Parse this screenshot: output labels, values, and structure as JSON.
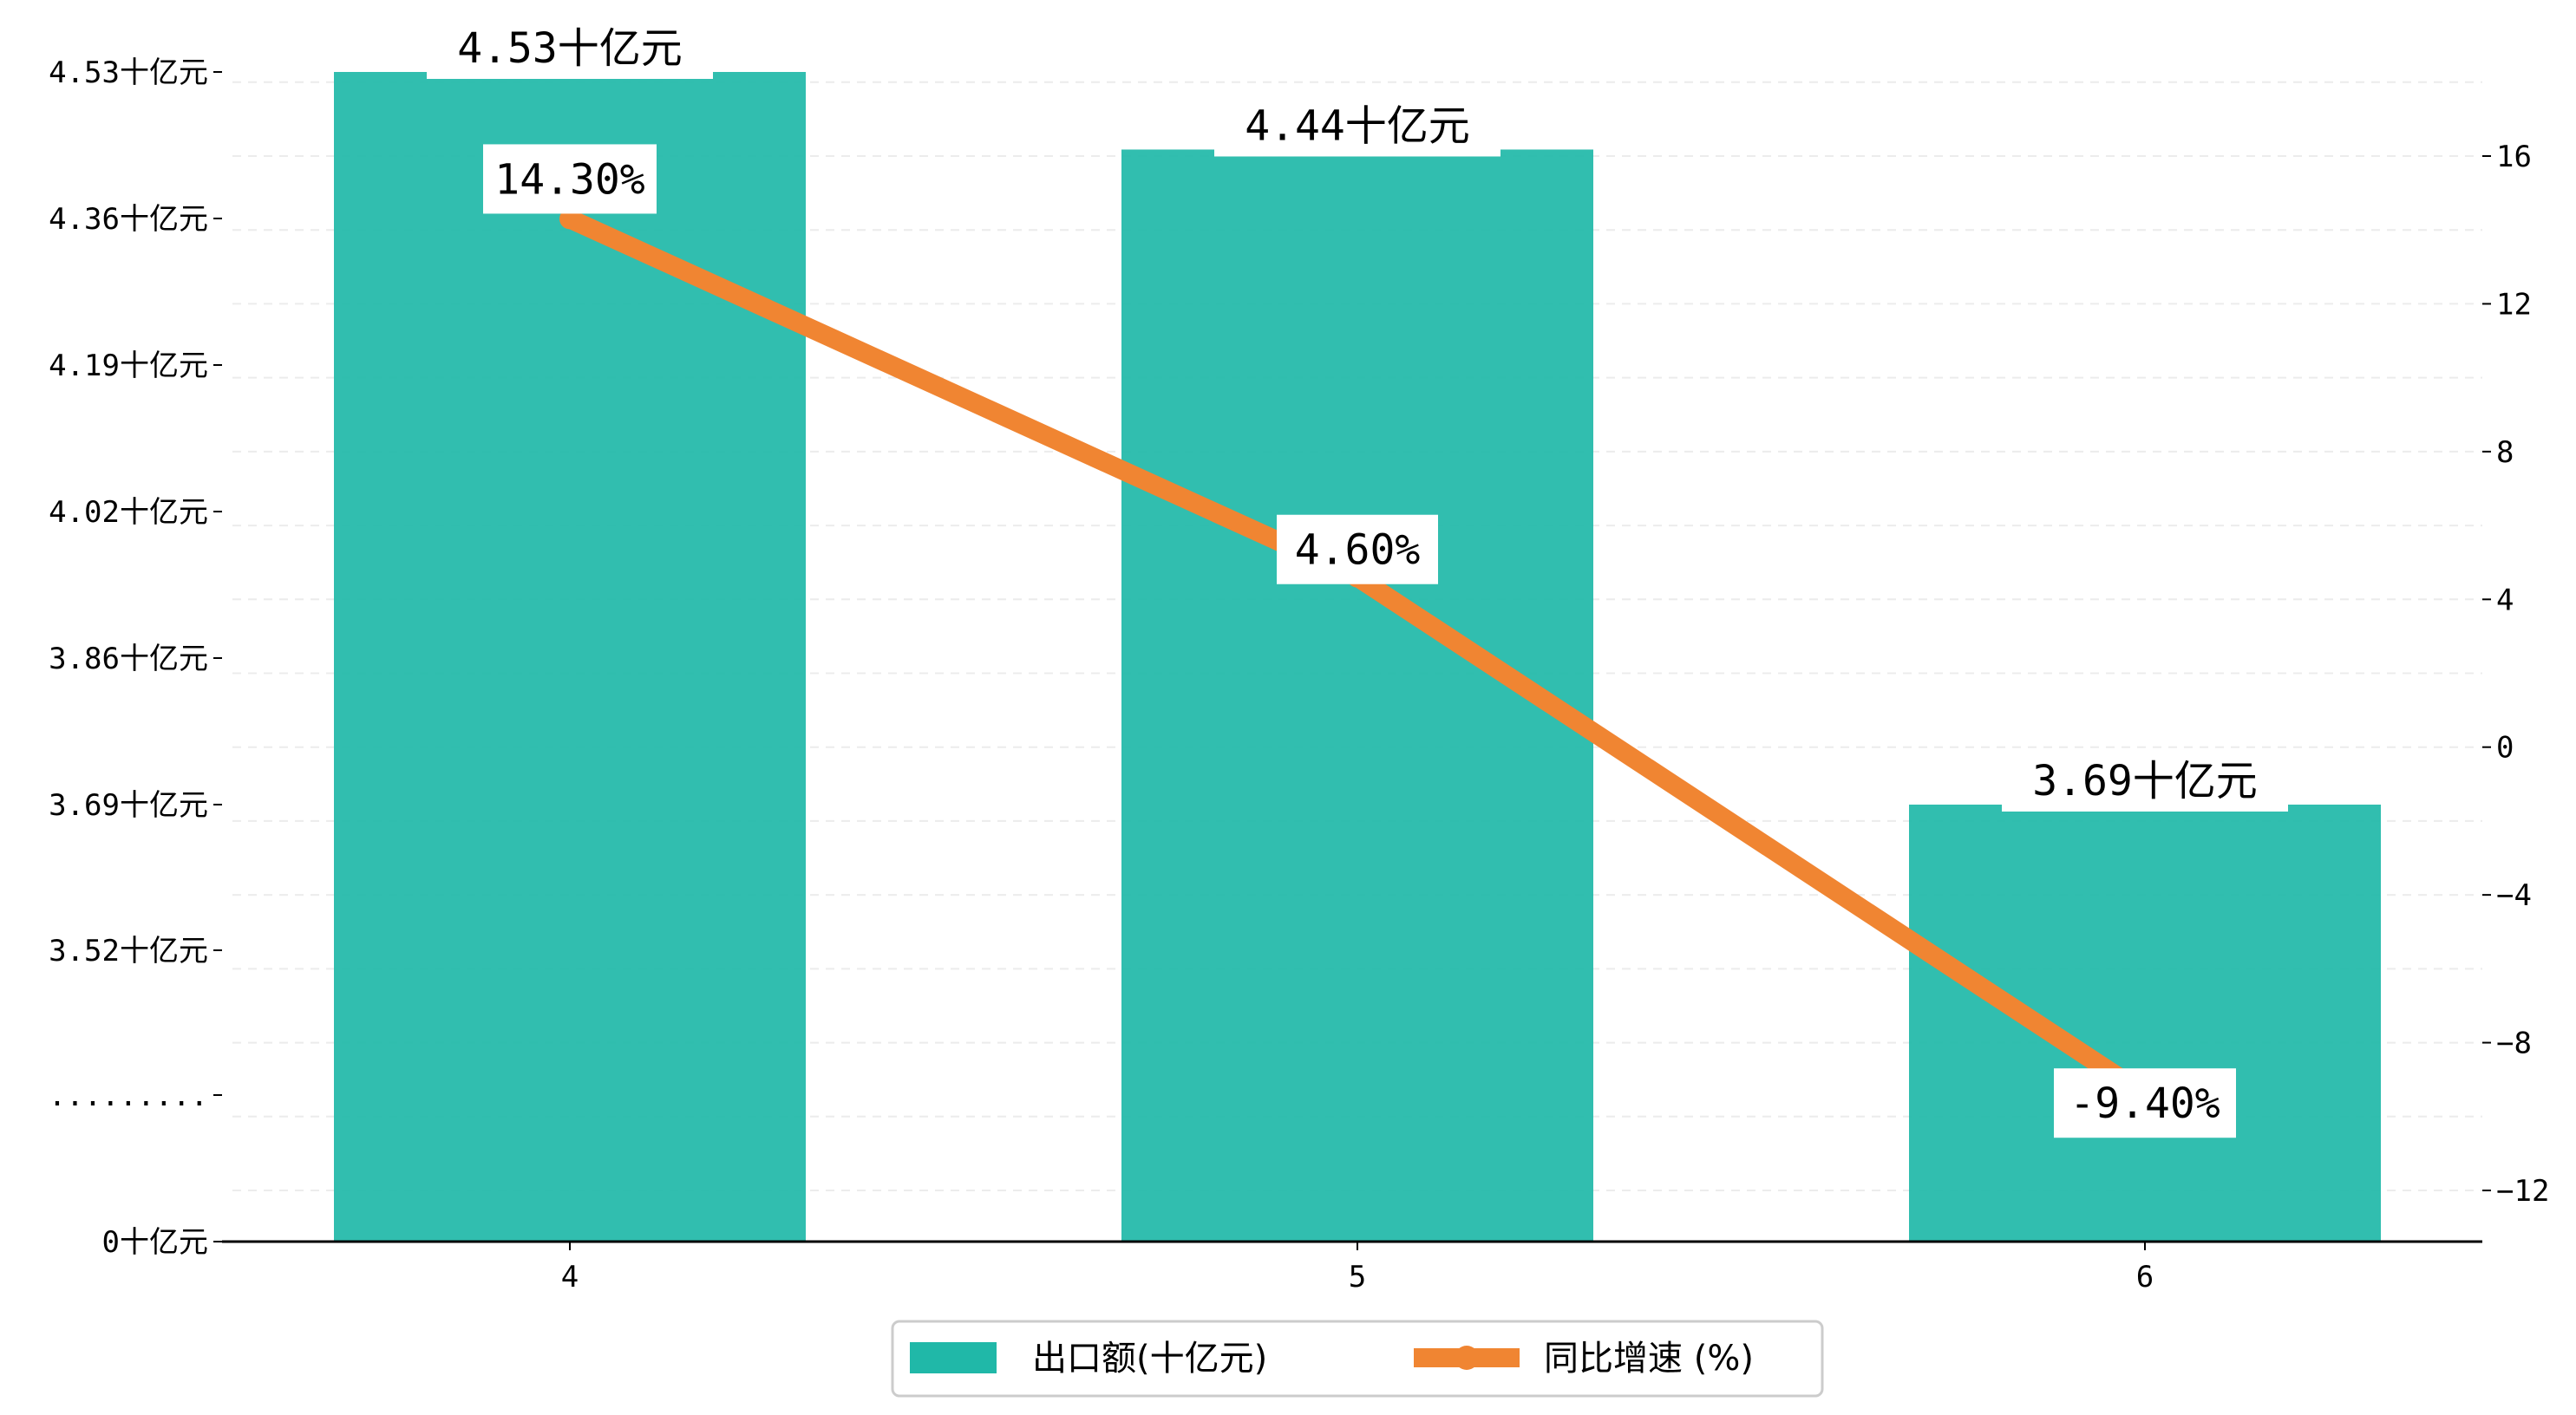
{
  "chart_data": {
    "type": "bar",
    "categories": [
      "4",
      "5",
      "6"
    ],
    "series": [
      {
        "name": "出口额(十亿元)",
        "kind": "bar",
        "axis": "left",
        "color": "#20B8A8",
        "values": [
          4.53,
          4.44,
          3.69
        ],
        "labels": [
          "4.53十亿元",
          "4.44十亿元",
          "3.69十亿元"
        ]
      },
      {
        "name": "同比增速 (%)",
        "kind": "line",
        "axis": "right",
        "color": "#F08532",
        "values": [
          14.3,
          4.6,
          -9.4
        ],
        "labels": [
          "14.30%",
          "4.60%",
          "-9.40%"
        ]
      }
    ],
    "left_axis": {
      "ticks": [
        {
          "value": 0,
          "label": "0十亿元"
        },
        {
          "value": 3.35,
          "label": "........."
        },
        {
          "value": 3.52,
          "label": "3.52十亿元"
        },
        {
          "value": 3.69,
          "label": "3.69十亿元"
        },
        {
          "value": 3.86,
          "label": "3.86十亿元"
        },
        {
          "value": 4.02,
          "label": "4.02十亿元"
        },
        {
          "value": 4.19,
          "label": "4.19十亿元"
        },
        {
          "value": 4.36,
          "label": "4.36十亿元"
        },
        {
          "value": 4.53,
          "label": "4.53十亿元"
        }
      ],
      "broken": true
    },
    "right_axis": {
      "ylim": [
        -14,
        18
      ],
      "ticks": [
        {
          "value": -12,
          "label": "−12"
        },
        {
          "value": -8,
          "label": "−8"
        },
        {
          "value": -4,
          "label": "−4"
        },
        {
          "value": 0,
          "label": "0"
        },
        {
          "value": 4,
          "label": "4"
        },
        {
          "value": 8,
          "label": "8"
        },
        {
          "value": 12,
          "label": "12"
        },
        {
          "value": 16,
          "label": "16"
        }
      ]
    },
    "grid": "horizontal-dashed",
    "legend": {
      "position": "bottom-center",
      "entries": [
        "出口额(十亿元)",
        "同比增速 (%)"
      ]
    }
  }
}
